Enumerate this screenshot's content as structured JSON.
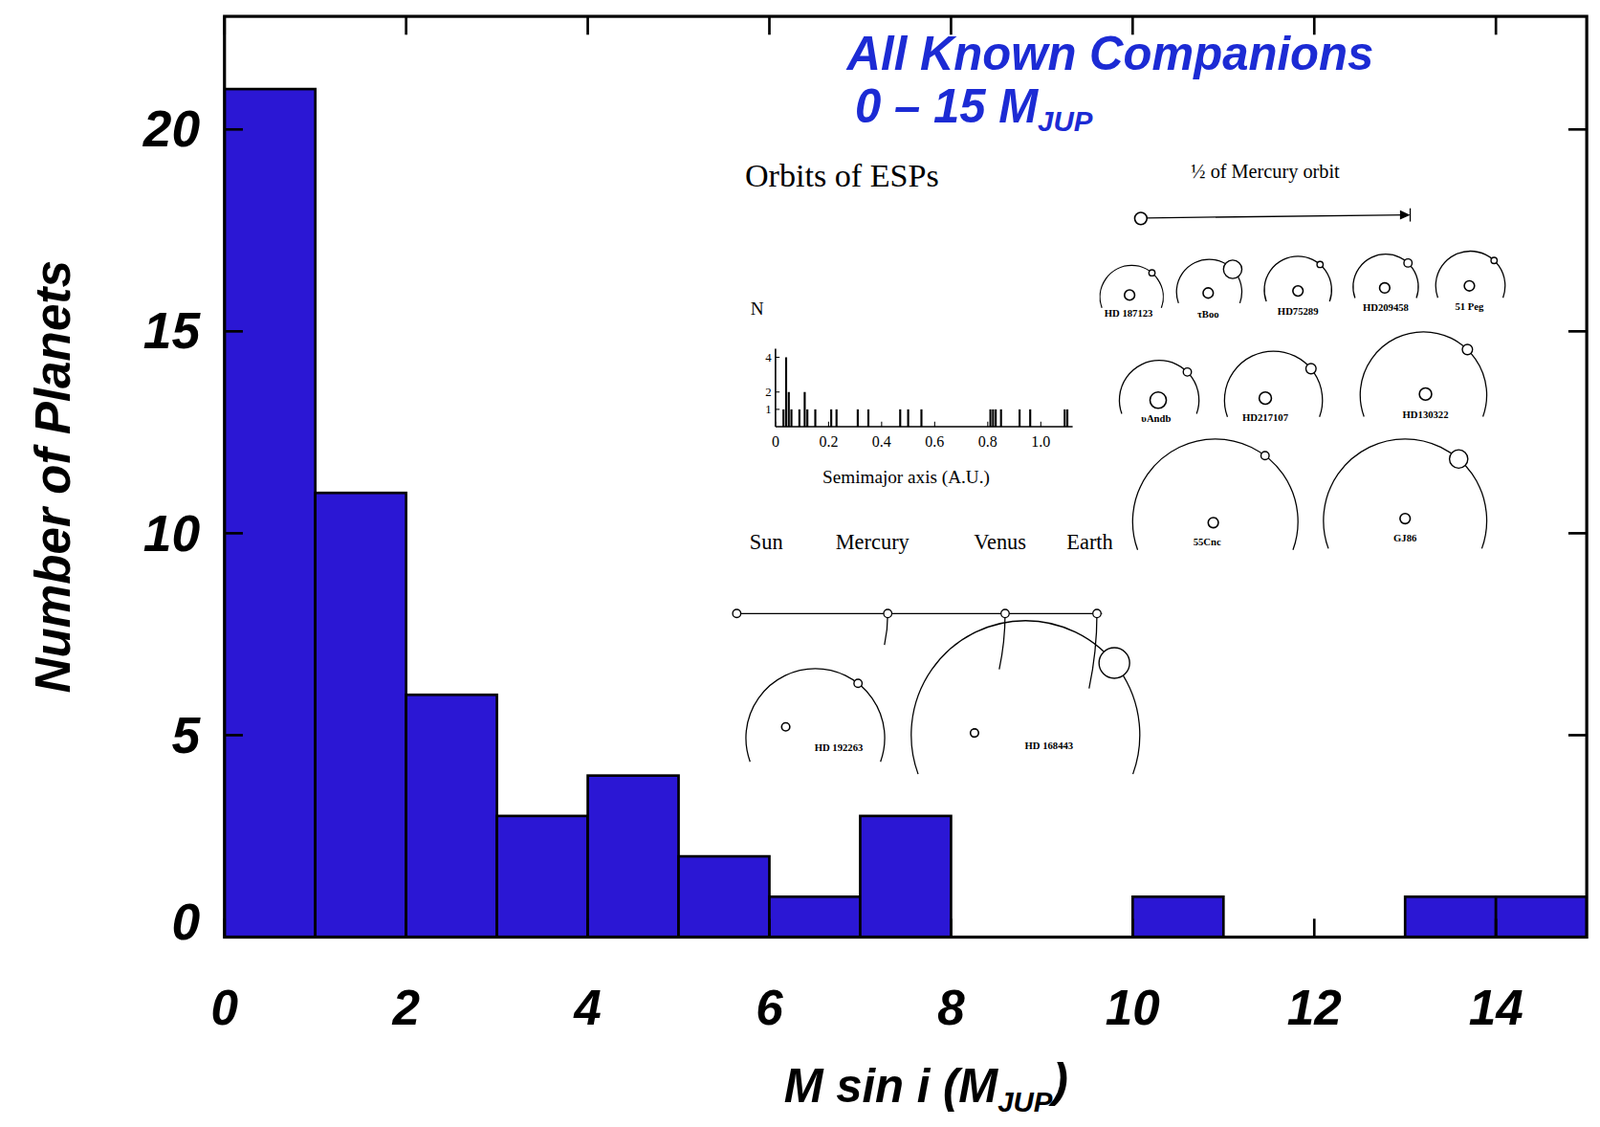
{
  "chart_data": [
    {
      "type": "histogram",
      "title": "All Known Companions",
      "subtitle": [
        {
          "text": "0 – 15 M"
        },
        {
          "text": "JUP",
          "sub": true
        }
      ],
      "x_label": [
        {
          "text": "M sin i  (M"
        },
        {
          "text": "JUP",
          "sub": true
        },
        {
          "text": ")"
        }
      ],
      "y_label": "Number of Planets",
      "bins": [
        0,
        1,
        2,
        3,
        4,
        5,
        6,
        7,
        8,
        9,
        10,
        11,
        12,
        13,
        14,
        15
      ],
      "values": [
        21,
        11,
        6,
        3,
        4,
        2,
        1,
        3,
        0,
        0,
        1,
        0,
        0,
        1,
        1
      ],
      "color": "#2b17d4",
      "xlim": [
        0,
        15
      ],
      "ylim": [
        0,
        22.8
      ],
      "xticks": [
        0,
        2,
        4,
        6,
        8,
        10,
        12,
        14
      ],
      "yticks": [
        0,
        5,
        10,
        15,
        20
      ],
      "grid": false
    },
    {
      "type": "bar",
      "x_label": "Semimajor axis (A.U.)",
      "y_label": "N",
      "x": [
        0.03,
        0.04,
        0.05,
        0.06,
        0.09,
        0.11,
        0.12,
        0.15,
        0.21,
        0.23,
        0.31,
        0.35,
        0.47,
        0.5,
        0.55,
        0.81,
        0.82,
        0.83,
        0.85,
        0.92,
        0.96,
        1.09,
        1.1
      ],
      "values": [
        1,
        4,
        2,
        1,
        1,
        2,
        1,
        1,
        1,
        1,
        1,
        1,
        1,
        1,
        1,
        1,
        1,
        1,
        1,
        1,
        1,
        1,
        1
      ],
      "color": "#000000",
      "xlim": [
        0,
        1.12
      ],
      "ylim": [
        0,
        4.5
      ],
      "xticks": [
        0,
        0.2,
        0.4,
        0.6,
        0.8,
        {
          "value": 1,
          "label": "1.0"
        }
      ],
      "yticks": [
        1,
        2,
        4
      ],
      "grid": false
    }
  ],
  "diagram": {
    "title": "Orbits of ESPs",
    "scale_label": "½ of Mercury orbit",
    "solar_system": [
      "Sun",
      "Mercury",
      "Venus",
      "Earth"
    ],
    "systems": [
      "HD 187123",
      "τBoo",
      "HD75289",
      "HD209458",
      "51 Peg",
      "υAndb",
      "HD217107",
      "HD130322",
      "55Cnc",
      "GJ86",
      "HD 192263",
      "HD 168443"
    ]
  }
}
